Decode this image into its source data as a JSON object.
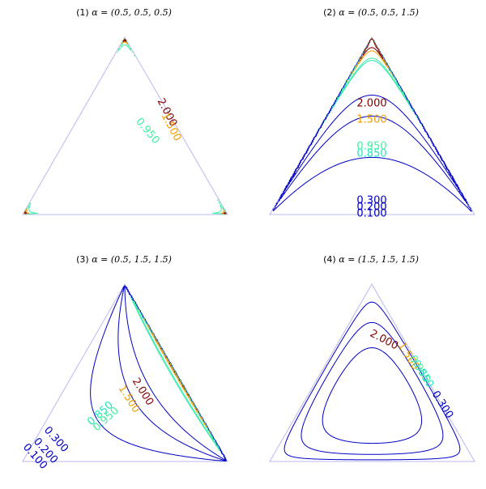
{
  "figure": {
    "colors": {
      "simplex": "#b8b8f0",
      "0.100": "#0000c8",
      "0.200": "#0000c8",
      "0.300": "#0000c8",
      "0.850": "#22e8b8",
      "0.950": "#40f0a0",
      "1.500": "#f0a000",
      "2.000": "#800000"
    }
  },
  "chart_data": [
    {
      "type": "contour",
      "title": "(1) α = (0.5, 0.5, 0.5)",
      "title_prefix": "(1)",
      "title_math": "α = (0.5, 0.5, 0.5)",
      "alpha": [
        0.5,
        0.5,
        0.5
      ],
      "levels": [
        0.95,
        1.5,
        2.0
      ],
      "labels": [
        {
          "text": "2.000",
          "level": 2.0,
          "rotate": 62
        },
        {
          "text": "1.500",
          "level": 1.5,
          "rotate": 62
        },
        {
          "text": "0.950",
          "level": 0.95,
          "rotate": 50
        }
      ]
    },
    {
      "type": "contour",
      "title": "(2) α = (0.5, 0.5, 1.5)",
      "title_prefix": "(2)",
      "title_math": "α = (0.5, 0.5, 1.5)",
      "alpha": [
        0.5,
        0.5,
        1.5
      ],
      "levels": [
        0.1,
        0.2,
        0.3,
        0.85,
        0.95,
        1.5,
        2.0
      ],
      "labels": [
        {
          "text": "2.000",
          "level": 2.0,
          "rotate": 0
        },
        {
          "text": "1.500",
          "level": 1.5,
          "rotate": 0
        },
        {
          "text": "0.950",
          "level": 0.95,
          "rotate": 0
        },
        {
          "text": "0.850",
          "level": 0.85,
          "rotate": 0
        },
        {
          "text": "0.300",
          "level": 0.3,
          "rotate": 0
        },
        {
          "text": "0.200",
          "level": 0.2,
          "rotate": 0
        },
        {
          "text": "0.100",
          "level": 0.1,
          "rotate": 0
        }
      ]
    },
    {
      "type": "contour",
      "title": "(3) α = (0.5, 1.5, 1.5)",
      "title_prefix": "(3)",
      "title_math": "α = (0.5, 1.5, 1.5)",
      "alpha": [
        0.5,
        1.5,
        1.5
      ],
      "levels": [
        0.1,
        0.2,
        0.3,
        0.85,
        0.95,
        1.5,
        2.0
      ],
      "labels": [
        {
          "text": "2.000",
          "level": 2.0,
          "rotate": 58
        },
        {
          "text": "1.500",
          "level": 1.5,
          "rotate": 58
        },
        {
          "text": "0.950",
          "level": 0.95,
          "rotate": -42
        },
        {
          "text": "0.850",
          "level": 0.85,
          "rotate": -42
        },
        {
          "text": "0.300",
          "level": 0.3,
          "rotate": 48
        },
        {
          "text": "0.200",
          "level": 0.2,
          "rotate": 48
        },
        {
          "text": "0.100",
          "level": 0.1,
          "rotate": 48
        }
      ]
    },
    {
      "type": "contour",
      "title": "(4) α = (1.5, 1.5, 1.5)",
      "title_prefix": "(4)",
      "title_math": "α = (1.5, 1.5, 1.5)",
      "alpha": [
        1.5,
        1.5,
        1.5
      ],
      "levels": [
        0.1,
        0.2,
        0.3,
        0.85,
        0.95,
        1.5,
        2.0
      ],
      "labels": [
        {
          "text": "2.000",
          "level": 2.0,
          "rotate": 28
        },
        {
          "text": "1.500",
          "level": 1.5,
          "rotate": 58
        },
        {
          "text": "0.950",
          "level": 0.95,
          "rotate": 58
        },
        {
          "text": "0.850",
          "level": 0.85,
          "rotate": 58
        },
        {
          "text": "0.300",
          "level": 0.3,
          "rotate": 58
        }
      ]
    }
  ]
}
